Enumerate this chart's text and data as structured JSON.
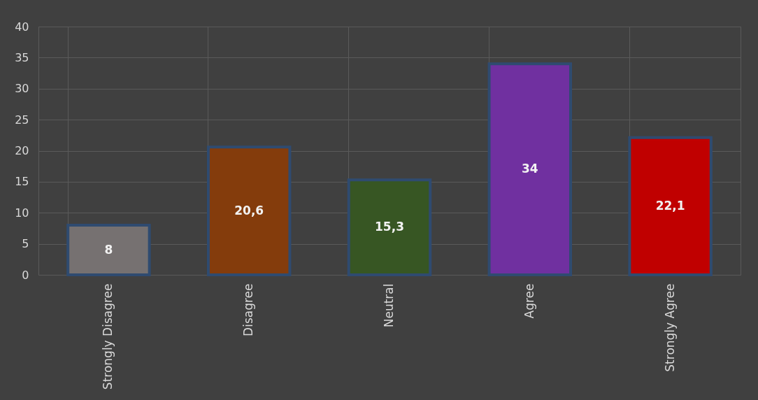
{
  "chart_data": {
    "type": "bar",
    "categories": [
      "Strongly Disagree",
      "Disagree",
      "Neutral",
      "Agree",
      "Strongly Agree"
    ],
    "values": [
      8,
      20.6,
      15.3,
      34,
      22.1
    ],
    "colors": [
      "#767171",
      "#843c0c",
      "#375623",
      "#7030a0",
      "#c00000"
    ],
    "value_labels": [
      "8",
      "20,6",
      "15,3",
      "34",
      "22,1"
    ],
    "ylim": [
      0,
      40
    ],
    "yticks": [
      0,
      5,
      10,
      15,
      20,
      25,
      30,
      35,
      40
    ],
    "grid": true
  }
}
